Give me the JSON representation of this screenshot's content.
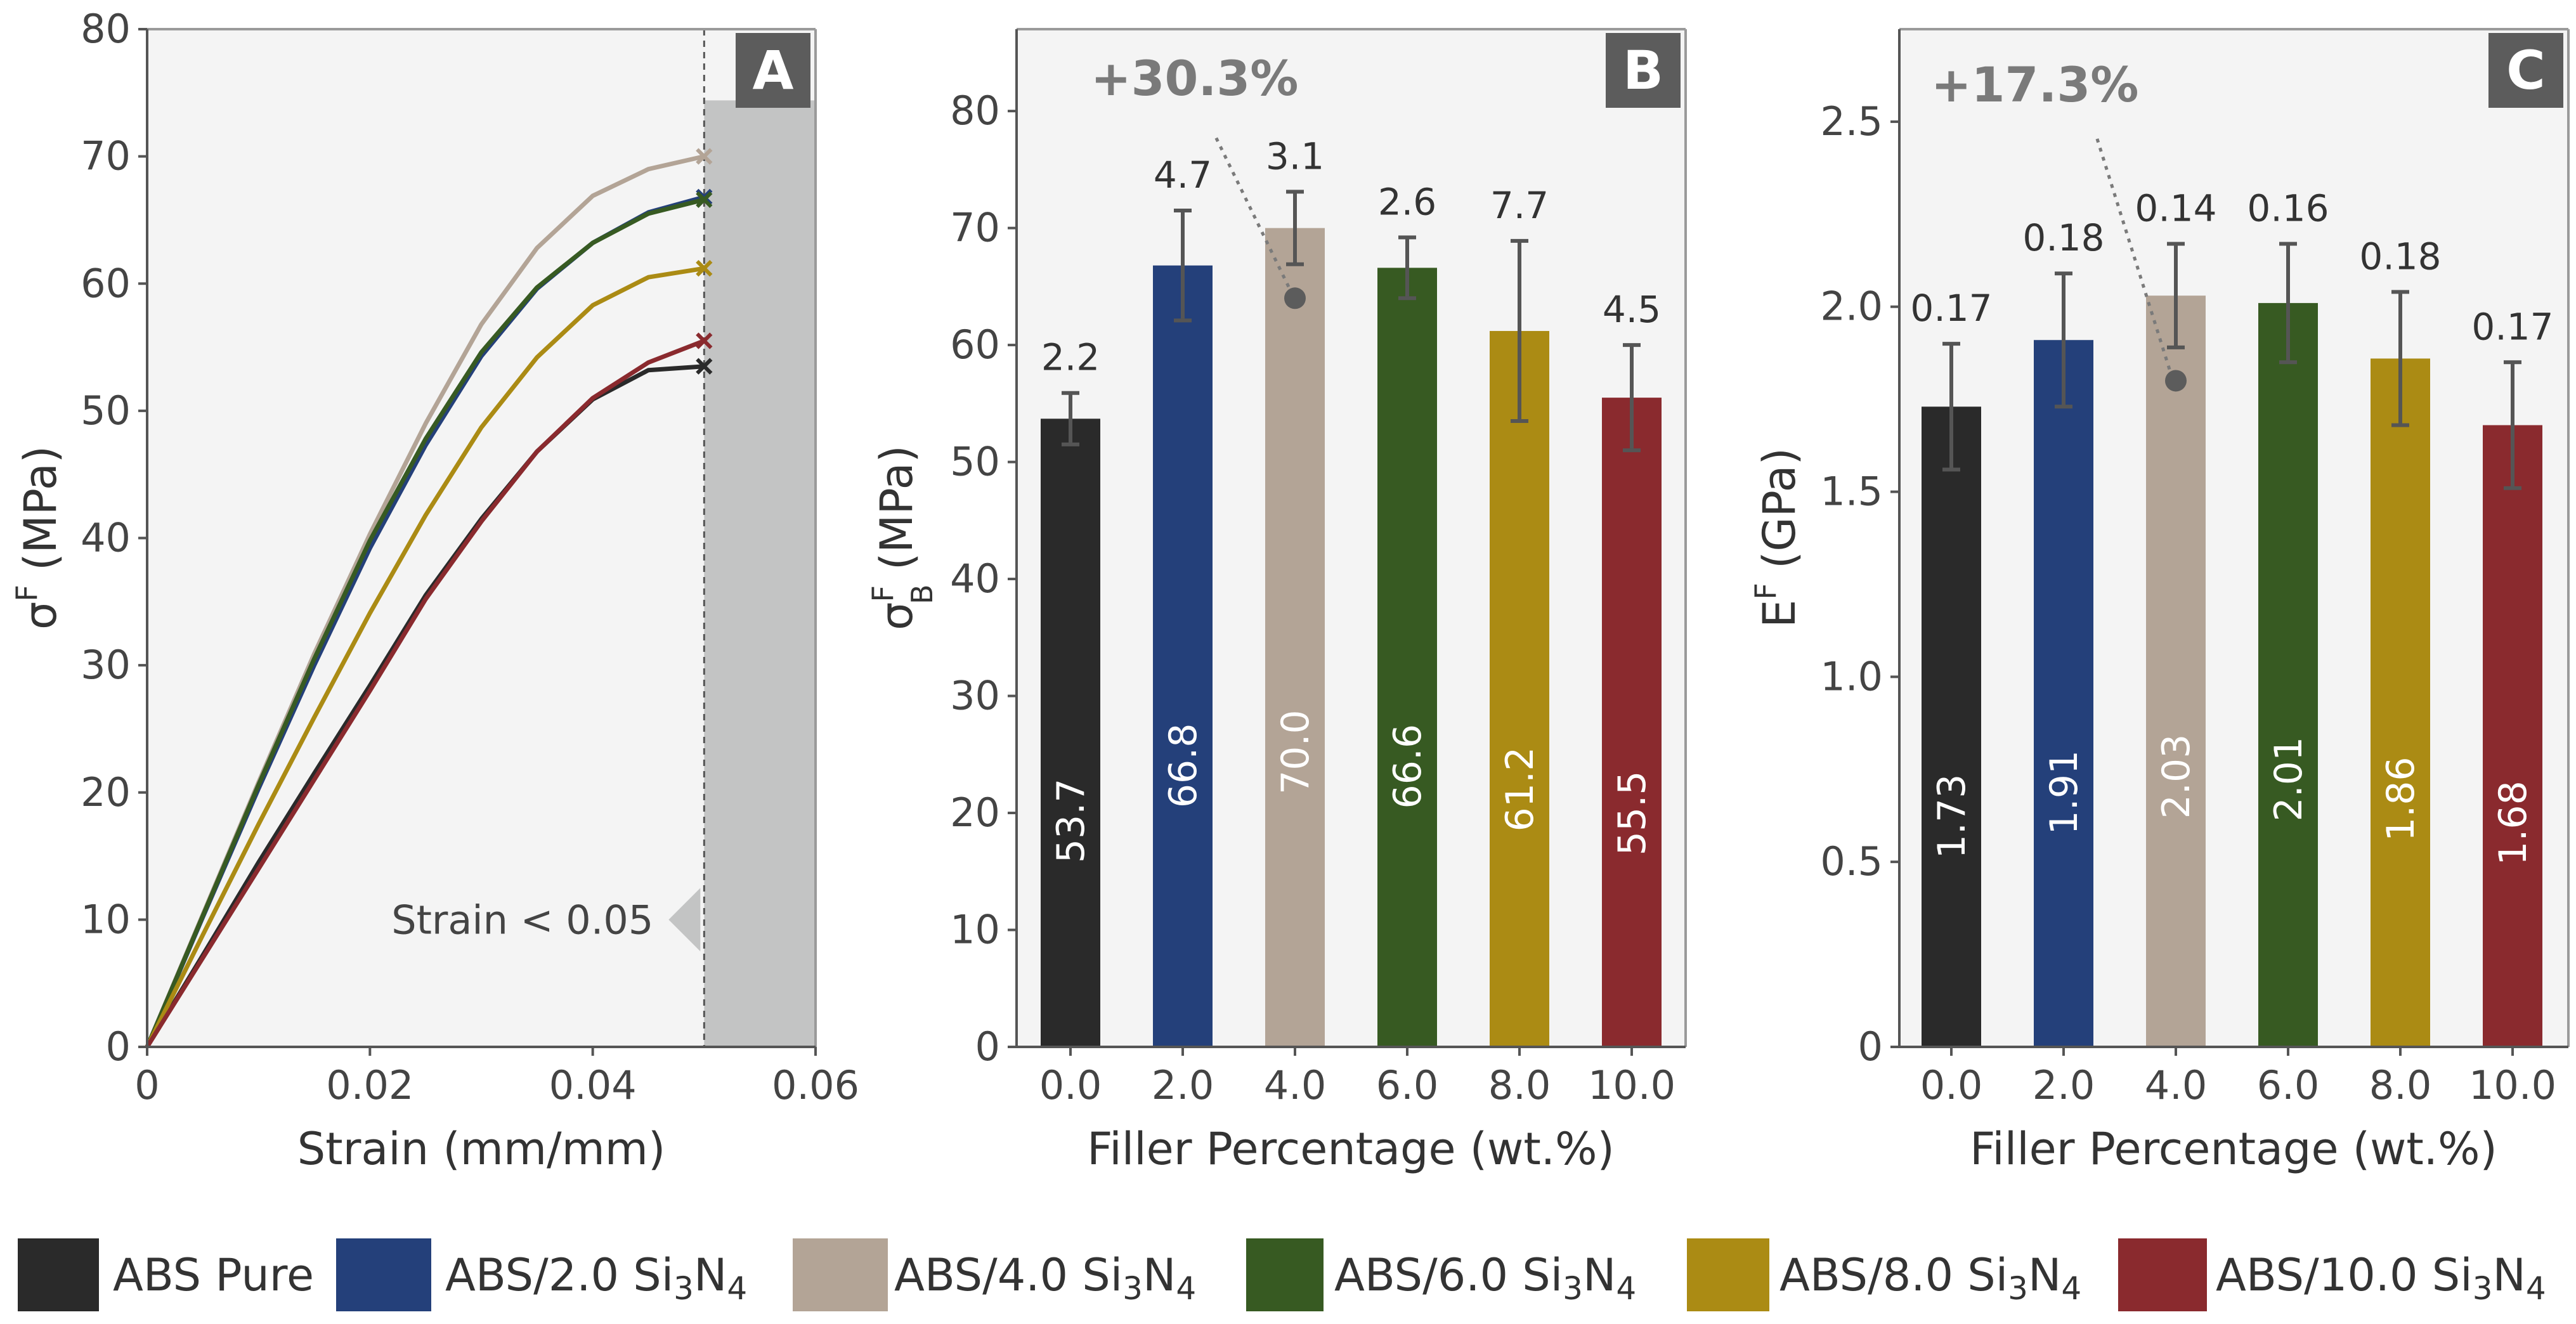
{
  "colors": {
    "abs_pure": "#2a2a2a",
    "abs_2": "#24407a",
    "abs_4": "#b3a496",
    "abs_6": "#375a22",
    "abs_8": "#ab8b14",
    "abs_10": "#8a2a2e",
    "panel_bg": "#f4f4f4",
    "shade": "#c3c4c4",
    "badge_bg": "#5c5c5c",
    "error_bar": "#555555",
    "annot": "#7a7a7a"
  },
  "legend": {
    "entries": [
      {
        "prefix": "ABS Pure",
        "sub1": "",
        "mid": "",
        "sub2": ""
      },
      {
        "prefix": "ABS/2.0 Si",
        "sub1": "3",
        "mid": "N",
        "sub2": "4"
      },
      {
        "prefix": "ABS/4.0 Si",
        "sub1": "3",
        "mid": "N",
        "sub2": "4"
      },
      {
        "prefix": "ABS/6.0 Si",
        "sub1": "3",
        "mid": "N",
        "sub2": "4"
      },
      {
        "prefix": "ABS/8.0 Si",
        "sub1": "3",
        "mid": "N",
        "sub2": "4"
      },
      {
        "prefix": "ABS/10.0 Si",
        "sub1": "3",
        "mid": "N",
        "sub2": "4"
      }
    ]
  },
  "chart_data": [
    {
      "panel": "A",
      "type": "line",
      "xlabel": "Strain (mm/mm)",
      "ylabel": {
        "base": "σ",
        "sup": "F",
        "unit": " (MPa)"
      },
      "xlim": [
        0,
        0.06
      ],
      "ylim": [
        0,
        80
      ],
      "xticks": [
        0,
        0.02,
        0.04,
        0.06
      ],
      "xtick_labels": [
        "0",
        "0.02",
        "0.04",
        "0.06"
      ],
      "yticks": [
        0,
        10,
        20,
        30,
        40,
        50,
        60,
        70,
        80
      ],
      "ytick_labels": [
        "0",
        "10",
        "20",
        "30",
        "40",
        "50",
        "60",
        "70",
        "80"
      ],
      "cutoff_x": 0.05,
      "annotation": "Strain < 0.05",
      "annotation_y": 10,
      "series": [
        {
          "name": "ABS Pure",
          "color_key": "abs_pure",
          "x": [
            0,
            0.005,
            0.01,
            0.015,
            0.02,
            0.025,
            0.03,
            0.035,
            0.04,
            0.045,
            0.05
          ],
          "y": [
            0,
            7.2,
            14.5,
            21.5,
            28.4,
            35.5,
            41.5,
            46.8,
            50.9,
            53.2,
            53.5
          ]
        },
        {
          "name": "ABS/2.0 Si3N4",
          "color_key": "abs_2",
          "x": [
            0,
            0.005,
            0.01,
            0.015,
            0.02,
            0.025,
            0.03,
            0.035,
            0.04,
            0.045,
            0.05
          ],
          "y": [
            0,
            10.2,
            20.3,
            30.0,
            39.2,
            47.3,
            54.3,
            59.6,
            63.2,
            65.6,
            66.8
          ]
        },
        {
          "name": "ABS/4.0 Si3N4",
          "color_key": "abs_4",
          "x": [
            0,
            0.005,
            0.01,
            0.015,
            0.02,
            0.025,
            0.03,
            0.035,
            0.04,
            0.045,
            0.05
          ],
          "y": [
            0,
            10.4,
            20.8,
            30.9,
            40.3,
            49.0,
            56.8,
            62.8,
            66.9,
            69.0,
            70.0
          ]
        },
        {
          "name": "ABS/6.0 Si3N4",
          "color_key": "abs_6",
          "x": [
            0,
            0.005,
            0.01,
            0.015,
            0.02,
            0.025,
            0.03,
            0.035,
            0.04,
            0.045,
            0.05
          ],
          "y": [
            0,
            10.3,
            20.6,
            30.5,
            39.8,
            47.8,
            54.6,
            59.7,
            63.2,
            65.5,
            66.6
          ]
        },
        {
          "name": "ABS/8.0 Si3N4",
          "color_key": "abs_8",
          "x": [
            0,
            0.005,
            0.01,
            0.015,
            0.02,
            0.025,
            0.03,
            0.035,
            0.04,
            0.045,
            0.05
          ],
          "y": [
            0,
            8.8,
            17.5,
            25.9,
            34.1,
            41.8,
            48.7,
            54.2,
            58.3,
            60.5,
            61.2
          ]
        },
        {
          "name": "ABS/10.0 Si3N4",
          "color_key": "abs_10",
          "x": [
            0,
            0.005,
            0.01,
            0.015,
            0.02,
            0.025,
            0.03,
            0.035,
            0.04,
            0.045,
            0.05
          ],
          "y": [
            0,
            7.0,
            14.0,
            21.0,
            28.0,
            35.2,
            41.3,
            46.8,
            51.0,
            53.8,
            55.5
          ]
        }
      ]
    },
    {
      "panel": "B",
      "type": "bar",
      "xlabel": "Filler Percentage (wt.%)",
      "ylabel": {
        "base": "σ",
        "sup": "F",
        "sub": "B",
        "unit": " (MPa)"
      },
      "categories": [
        "0.0",
        "2.0",
        "4.0",
        "6.0",
        "8.0",
        "10.0"
      ],
      "values": [
        53.7,
        66.8,
        70.0,
        66.6,
        61.2,
        55.5
      ],
      "value_labels": [
        "53.7",
        "66.8",
        "70.0",
        "66.6",
        "61.2",
        "55.5"
      ],
      "errors": [
        2.2,
        4.7,
        3.1,
        2.6,
        7.7,
        4.5
      ],
      "error_labels": [
        "2.2",
        "4.7",
        "3.1",
        "2.6",
        "7.7",
        "4.5"
      ],
      "color_keys": [
        "abs_pure",
        "abs_2",
        "abs_4",
        "abs_6",
        "abs_8",
        "abs_10"
      ],
      "ylim": [
        0,
        87
      ],
      "yticks": [
        0,
        10,
        20,
        30,
        40,
        50,
        60,
        70,
        80
      ],
      "ytick_labels": [
        "0",
        "10",
        "20",
        "30",
        "40",
        "50",
        "60",
        "70",
        "80"
      ],
      "improvement": "+30.3%",
      "improvement_marker": {
        "category_index": 2,
        "y": 64.0
      }
    },
    {
      "panel": "C",
      "type": "bar",
      "xlabel": "Filler Percentage (wt.%)",
      "ylabel": {
        "base": "E",
        "sup": "F",
        "unit": " (GPa)"
      },
      "categories": [
        "0.0",
        "2.0",
        "4.0",
        "6.0",
        "8.0",
        "10.0"
      ],
      "values": [
        1.73,
        1.91,
        2.03,
        2.01,
        1.86,
        1.68
      ],
      "value_labels": [
        "1.73",
        "1.91",
        "2.03",
        "2.01",
        "1.86",
        "1.68"
      ],
      "errors": [
        0.17,
        0.18,
        0.14,
        0.16,
        0.18,
        0.17
      ],
      "error_labels": [
        "0.17",
        "0.18",
        "0.14",
        "0.16",
        "0.18",
        "0.17"
      ],
      "color_keys": [
        "abs_pure",
        "abs_2",
        "abs_4",
        "abs_6",
        "abs_8",
        "abs_10"
      ],
      "ylim": [
        0,
        2.75
      ],
      "yticks": [
        0,
        0.5,
        1.0,
        1.5,
        2.0,
        2.5
      ],
      "ytick_labels": [
        "0",
        "0.5",
        "1.0",
        "1.5",
        "2.0",
        "2.5"
      ],
      "improvement": "+17.3%",
      "improvement_marker": {
        "category_index": 2,
        "y": 1.8
      }
    }
  ]
}
